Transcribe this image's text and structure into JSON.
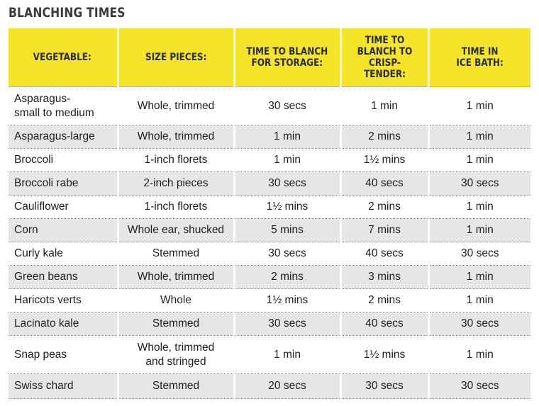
{
  "title": "BLANCHING TIMES",
  "headers": [
    "VEGETABLE:",
    "SIZE PIECES:",
    "TIME TO BLANCH\nFOR  STORAGE:",
    "TIME TO\nBLANCH TO\nCRISP-TENDER:",
    "TIME IN\nICE BATH:"
  ],
  "rows": [
    [
      "Asparagus-\nsmall to medium",
      "Whole, trimmed",
      "30 secs",
      "1 min",
      "1 min"
    ],
    [
      "Asparagus-large",
      "Whole, trimmed",
      "1 min",
      "2 mins",
      "1 min"
    ],
    [
      "Broccoli",
      "1-inch florets",
      "1 min",
      "1½ mins",
      "1 min"
    ],
    [
      "Broccoli rabe",
      "2-inch pieces",
      "30 secs",
      "40 secs",
      "30 secs"
    ],
    [
      "Cauliflower",
      "1-inch florets",
      "1½ mins",
      "2 mins",
      "1 min"
    ],
    [
      "Corn",
      "Whole ear, shucked",
      "5 mins",
      "7 mins",
      "1 min"
    ],
    [
      "Curly kale",
      "Stemmed",
      "30 secs",
      "40 secs",
      "30 secs"
    ],
    [
      "Green beans",
      "Whole, trimmed",
      "2 mins",
      "3 mins",
      "1 min"
    ],
    [
      "Haricots verts",
      "Whole",
      "1½ mins",
      "2 mins",
      "1 min"
    ],
    [
      "Lacinato kale",
      "Stemmed",
      "30 secs",
      "40 secs",
      "30 secs"
    ],
    [
      "Snap peas",
      "Whole, trimmed\nand stringed",
      "1 min",
      "1½ mins",
      "1 min"
    ],
    [
      "Swiss chard",
      "Stemmed",
      "20 secs",
      "30 secs",
      "30 secs"
    ]
  ],
  "colors": {
    "header_bg": "#f5e52a",
    "stripe_bg": "#e6e6e6",
    "title_text": "#3b3b3b"
  }
}
